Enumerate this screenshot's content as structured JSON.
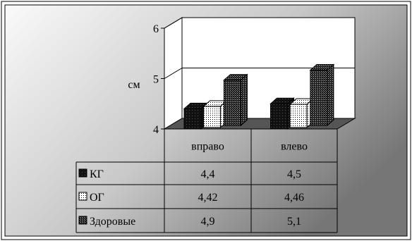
{
  "chart_data": {
    "type": "bar",
    "title": "",
    "xlabel": "",
    "ylabel": "см",
    "ylim": [
      4,
      6
    ],
    "yticks": [
      "4",
      "5",
      "6"
    ],
    "categories": [
      "вправо",
      "влево"
    ],
    "grid": true,
    "legend": "data table",
    "series": [
      {
        "name": "КГ",
        "values": [
          4.4,
          4.5
        ],
        "table_values": [
          "4,4",
          "4,5"
        ],
        "pattern": "solid-black"
      },
      {
        "name": "ОГ",
        "values": [
          4.42,
          4.46
        ],
        "table_values": [
          "4,42",
          "4,46"
        ],
        "pattern": "dotted-white"
      },
      {
        "name": "Здоровые",
        "values": [
          4.9,
          5.1
        ],
        "table_values": [
          "4,9",
          "5,1"
        ],
        "pattern": "checkered-dark"
      }
    ],
    "colors": {
      "floor": "#555555",
      "table_border": "#000000",
      "background_gradient": [
        "#ffffff",
        "#707070"
      ]
    }
  }
}
